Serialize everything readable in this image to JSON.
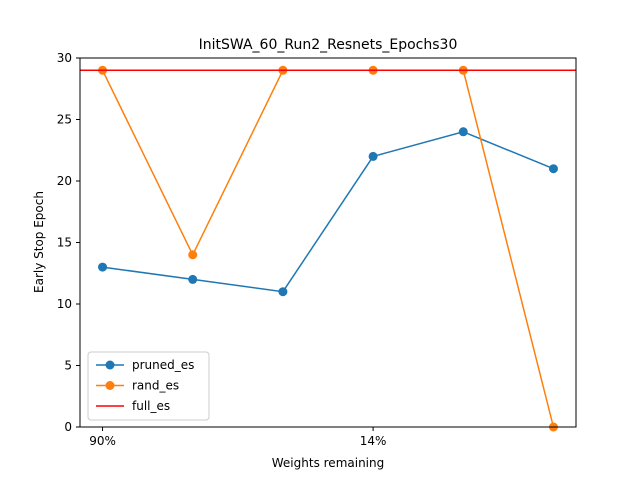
{
  "chart_data": {
    "type": "line",
    "title": "InitSWA_60_Run2_Resnets_Epochs30",
    "xlabel": "Weights remaining",
    "ylabel": "Early Stop Epoch",
    "x_positions": [
      0,
      1,
      2,
      3,
      4,
      5
    ],
    "xtick_labels": [
      "90%",
      "14%"
    ],
    "xtick_positions": [
      0,
      3
    ],
    "ylim": [
      0,
      30
    ],
    "yticks": [
      0,
      5,
      10,
      15,
      20,
      25,
      30
    ],
    "grid": false,
    "legend_position": "lower-left",
    "series": [
      {
        "name": "pruned_es",
        "color": "#1f77b4",
        "values": [
          13,
          12,
          11,
          22,
          24,
          21
        ],
        "marker": "circle"
      },
      {
        "name": "rand_es",
        "color": "#ff7f0e",
        "values": [
          29,
          14,
          29,
          29,
          29,
          0
        ],
        "marker": "circle"
      },
      {
        "name": "full_es",
        "color": "#ff0000",
        "values": [
          29,
          29,
          29,
          29,
          29,
          29
        ],
        "marker": "none",
        "hline": true
      }
    ]
  }
}
